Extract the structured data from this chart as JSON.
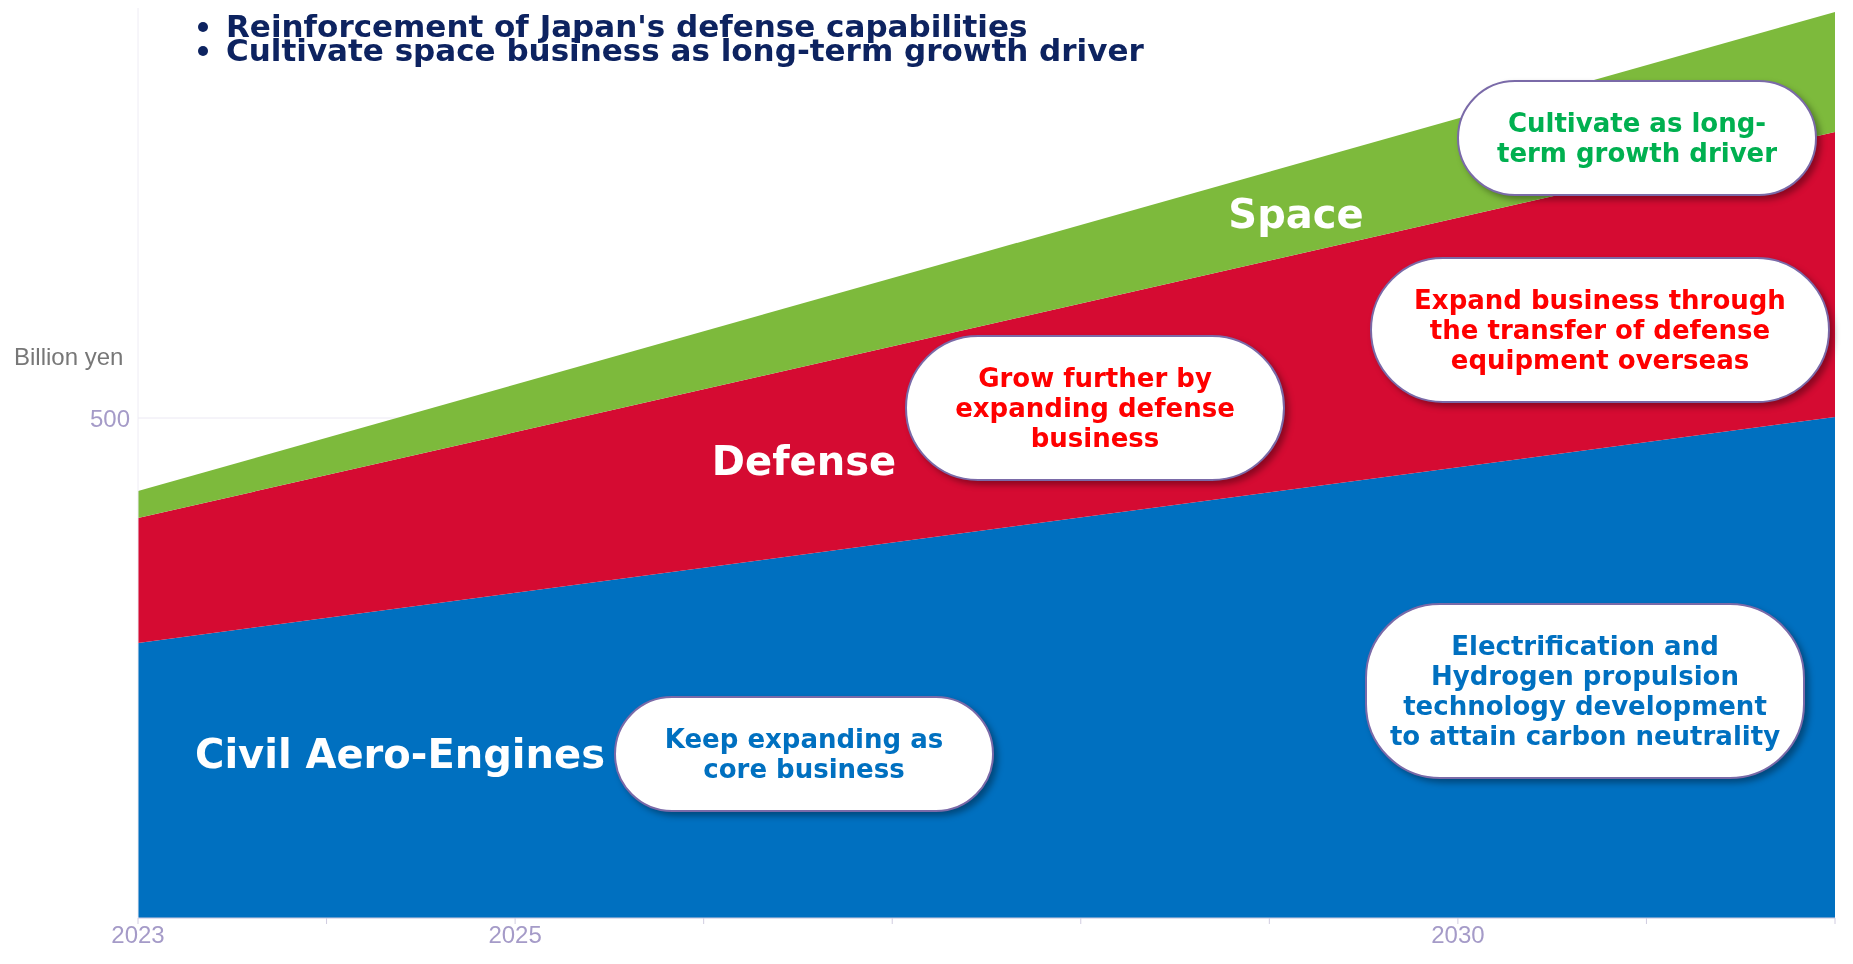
{
  "chart_data": {
    "type": "area",
    "stacked": true,
    "title": "Reinforcement of Japan's defense capabilities",
    "subtitle": "Cultivate space business as long-term growth driver",
    "ylabel": "Billion yen",
    "x": [
      2023,
      2032
    ],
    "xlim": [
      2023,
      2032
    ],
    "xticks": [
      2023,
      {
        "value": 2024,
        "label": null
      },
      2025,
      {
        "value": 2026,
        "label": null
      },
      {
        "value": 2027,
        "label": null
      },
      {
        "value": 2028,
        "label": null
      },
      {
        "value": 2029,
        "label": null
      },
      2030,
      {
        "value": 2031,
        "label": null
      },
      {
        "value": 2032,
        "label": null
      }
    ],
    "ylim": [
      0,
      910
    ],
    "yticks": [
      0,
      500
    ],
    "grid": "y",
    "legend": false,
    "series": [
      {
        "name": "Civil Aero-Engines",
        "color": "#0070c0",
        "values": [
          275,
          501
        ]
      },
      {
        "name": "Defense",
        "color": "#d50b32",
        "values": [
          125,
          285
        ]
      },
      {
        "name": "Space",
        "color": "#7dba3c",
        "values": [
          27,
          120
        ]
      }
    ],
    "annotations": [
      "Keep expanding as core business",
      "Grow further by expanding defense business",
      "Cultivate as long-term growth driver",
      "Expand business through the transfer of defense equipment overseas",
      "Electrification and Hydrogen propulsion technology development to attain carbon neutrality"
    ]
  }
}
